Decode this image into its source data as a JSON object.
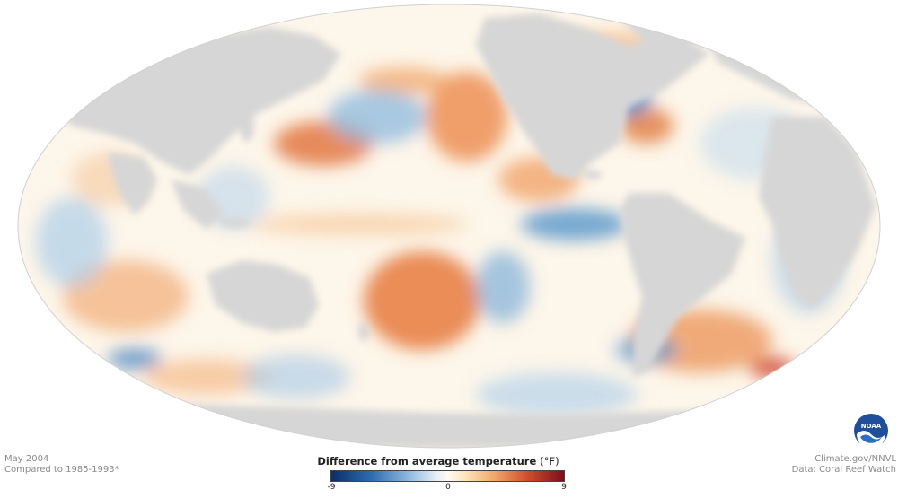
{
  "map": {
    "projection": "mollweide",
    "variable": "sea surface temperature anomaly",
    "colors": {
      "ocean_neutral": "#fffaf0",
      "land": "#d6d6d6",
      "background": "#ffffff",
      "warm": "#e07a3a",
      "cool": "#4b8fc8"
    }
  },
  "footer": {
    "date": "May 2004",
    "baseline": "Compared to 1985-1993*",
    "credit": "Climate.gov/NNVL",
    "data_source": "Data: Coral Reef Watch"
  },
  "legend": {
    "title": "Difference from average temperature",
    "unit": "(°F)",
    "min_label": "-9",
    "mid_label": "0",
    "max_label": "9",
    "range": [
      -9,
      9
    ]
  },
  "logo": {
    "text": "NOAA",
    "icon": "noaa-logo-icon"
  }
}
